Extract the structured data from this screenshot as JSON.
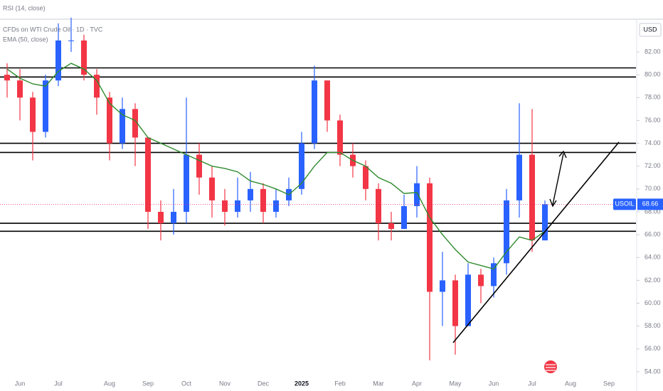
{
  "chart_data": {
    "type": "candlestick",
    "indicator": "RSI (14, close)",
    "title": "CFDs on WTI Crude Oil · 1D · TVC",
    "currency": "USD",
    "symbol": "USOIL",
    "up_color": "#2962ff",
    "down_color": "#f23645",
    "categories": [
      null,
      "Jun",
      null,
      null,
      "Jul",
      null,
      null,
      null,
      "Aug",
      null,
      null,
      "Sep",
      null,
      null,
      "Oct",
      null,
      null,
      "Nov",
      null,
      null,
      "Dec",
      null,
      null,
      "2025",
      null,
      null,
      "Feb",
      null,
      null,
      "Mar",
      null,
      null,
      "Apr",
      null,
      null,
      "May",
      null,
      null,
      "Jun",
      null,
      null,
      "Jul",
      null,
      null,
      "Aug",
      null,
      null,
      "Sep"
    ],
    "open": [
      80,
      79.5,
      78,
      75,
      79.5,
      83,
      83,
      80,
      78,
      74,
      77,
      74.5,
      68,
      67,
      68,
      73,
      71,
      69,
      68,
      69,
      70,
      68,
      69,
      70,
      74,
      79.5,
      76,
      73,
      72,
      70,
      67,
      66.5,
      68.5,
      70.5,
      61,
      62,
      58,
      62.5,
      61.5,
      63.5,
      69,
      73,
      65.5,
      null,
      null,
      null,
      null,
      null
    ],
    "high": [
      81,
      80.5,
      78.5,
      80,
      84.5,
      85,
      83.5,
      80.5,
      78.5,
      78,
      77.5,
      74.5,
      69,
      70,
      78,
      74,
      72,
      70,
      71,
      71.5,
      70.5,
      70,
      71,
      75,
      80.8,
      79.5,
      76.5,
      74,
      72.5,
      70.5,
      68,
      69.5,
      72,
      71,
      64.5,
      62.5,
      63.5,
      63,
      64,
      70,
      77.5,
      77,
      69,
      null,
      null,
      null,
      null,
      null
    ],
    "low": [
      78,
      76,
      72.5,
      74.5,
      79,
      82,
      79.5,
      76.5,
      72.5,
      73.5,
      72,
      66.5,
      65.5,
      66,
      67,
      69.5,
      67.5,
      66.8,
      67.5,
      68,
      67,
      67.5,
      68.5,
      69.5,
      73.5,
      75,
      72,
      71,
      69,
      65.5,
      65.5,
      66.5,
      67.5,
      55,
      58,
      55.5,
      58,
      60,
      60.5,
      62.5,
      67.5,
      64.5,
      65.5,
      null,
      null,
      null,
      null,
      null
    ],
    "close": [
      79.5,
      78,
      75,
      79.5,
      83,
      83,
      80,
      78,
      74,
      77,
      74.5,
      68,
      67,
      68,
      73,
      71,
      69,
      68,
      69,
      70,
      68,
      69,
      70,
      74,
      79.5,
      76,
      73,
      72,
      70,
      67,
      66.5,
      68.5,
      70.5,
      61,
      62,
      58,
      62.5,
      61.5,
      63.5,
      69,
      73,
      65.5,
      68.66,
      null,
      null,
      null,
      null,
      null
    ],
    "series": [
      {
        "name": "EMA (50, close)",
        "color": "#2e8b2e",
        "values": [
          80.5,
          79.7,
          79.2,
          79,
          80.3,
          81,
          80.5,
          79.5,
          77.5,
          76.5,
          76,
          74.5,
          74,
          73.5,
          73,
          72.5,
          72,
          71.8,
          71.5,
          70.7,
          70.4,
          70,
          69.5,
          70.5,
          72,
          73.2,
          73.2,
          72.5,
          72,
          71,
          70.5,
          69.6,
          69.7,
          67.5,
          66,
          64.7,
          63.6,
          63.3,
          63,
          64.5,
          65.8,
          65.5,
          66.3,
          null,
          null,
          null,
          null,
          null
        ]
      }
    ],
    "levels": [
      80.6,
      79.8,
      74.0,
      73.2,
      67.0,
      66.3
    ],
    "ylim": [
      53.56,
      84.8
    ],
    "yticks": [
      {
        "value": 54,
        "label": "54.00"
      },
      {
        "value": 56,
        "label": "56.00"
      },
      {
        "value": 58,
        "label": "58.00"
      },
      {
        "value": 60,
        "label": "60.00"
      },
      {
        "value": 62,
        "label": "62.00"
      },
      {
        "value": 64,
        "label": "64.00"
      },
      {
        "value": 66,
        "label": "66.00"
      },
      {
        "value": 68,
        "label": "68.00"
      },
      {
        "value": 70,
        "label": "70.00"
      },
      {
        "value": 72,
        "label": "72.00"
      },
      {
        "value": 74,
        "label": "74.00"
      },
      {
        "value": 76,
        "label": "76.00"
      },
      {
        "value": 78,
        "label": "78.00"
      },
      {
        "value": 80,
        "label": "80.00"
      },
      {
        "value": 82,
        "label": "82.00"
      }
    ]
  }
}
